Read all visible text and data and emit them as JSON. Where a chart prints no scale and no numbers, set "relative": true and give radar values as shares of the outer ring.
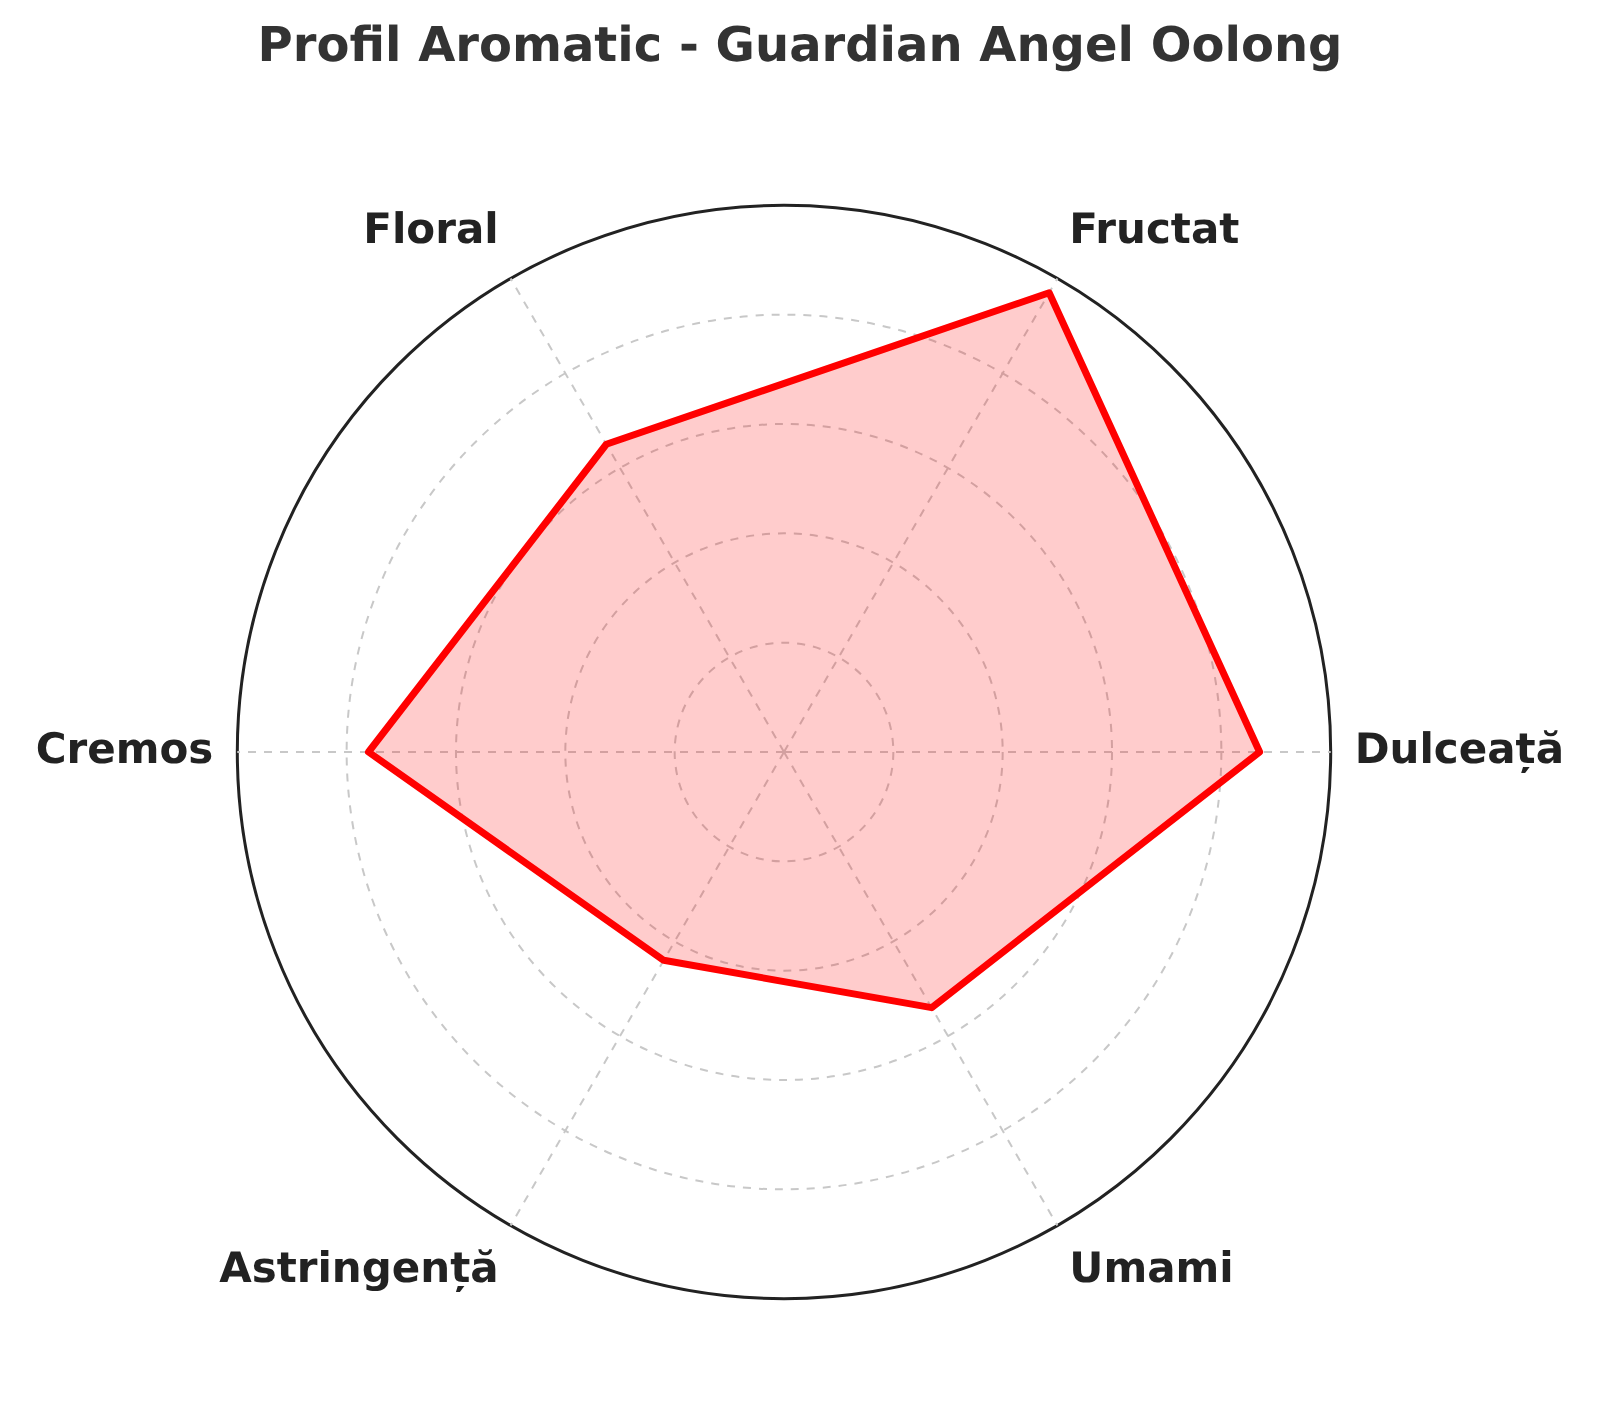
{
  "chart_data": {
    "type": "radar",
    "title": "Profil Aromatic - Guardian Angel Oolong",
    "relative": true,
    "grid": true,
    "categories": [
      "Fructat",
      "Dulceață",
      "Umami",
      "Astringență",
      "Cremos",
      "Floral"
    ],
    "series": [
      {
        "color": "#ff0000",
        "values": [
          0.97,
          0.87,
          0.54,
          0.44,
          0.76,
          0.65
        ]
      }
    ]
  }
}
